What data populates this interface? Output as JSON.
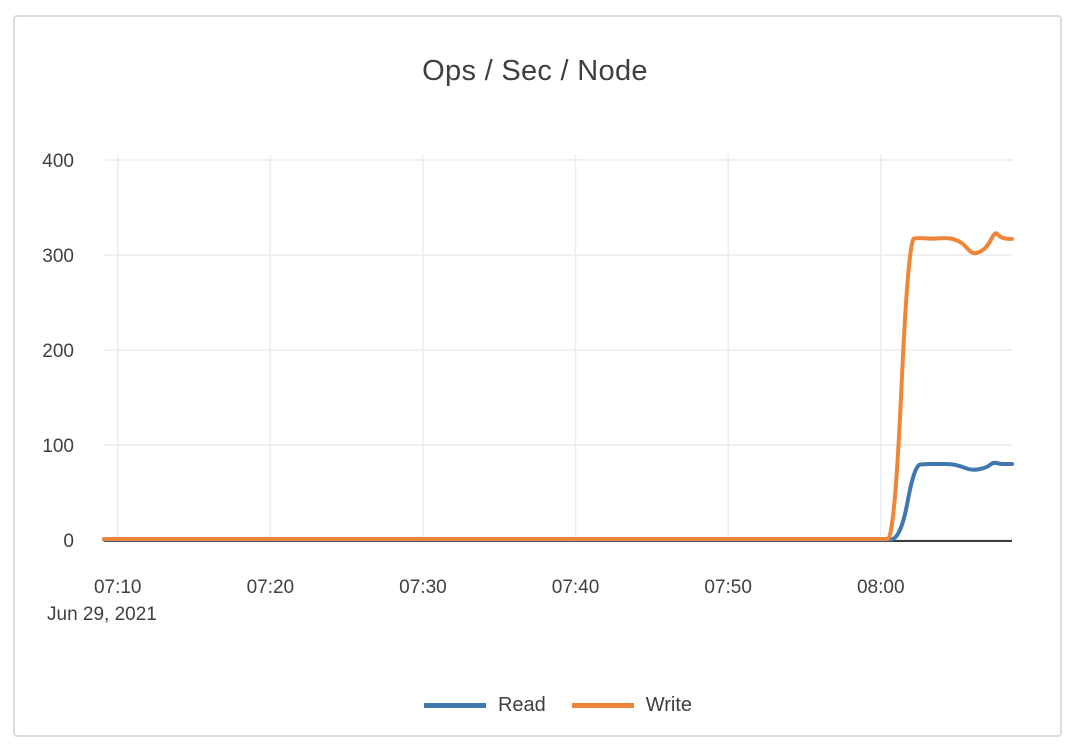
{
  "page": {
    "background": "#ffffff"
  },
  "card": {
    "border_color": "#dcdcdc",
    "background": "#ffffff"
  },
  "chart_data": {
    "type": "line",
    "title": "Ops / Sec / Node",
    "xlabel": "",
    "ylabel": "",
    "x_axis": {
      "date_label": "Jun 29, 2021",
      "tick_labels": [
        "07:10",
        "07:20",
        "07:30",
        "07:40",
        "07:50",
        "08:00"
      ],
      "tick_minutes_after_0700": [
        10,
        20,
        30,
        40,
        50,
        60
      ],
      "domain_minutes_after_0700": [
        9.1,
        68.6
      ]
    },
    "y_axis": {
      "tick_labels": [
        "0",
        "100",
        "200",
        "300",
        "400"
      ],
      "tick_values": [
        0,
        100,
        200,
        300,
        400
      ],
      "ylim": [
        0,
        400
      ]
    },
    "grid": true,
    "legend": {
      "position": "bottom",
      "entries": [
        "Read",
        "Write"
      ]
    },
    "series": [
      {
        "name": "Read",
        "color": "#3f77ae",
        "points": [
          [
            9.1,
            0.5
          ],
          [
            20,
            0.5
          ],
          [
            30,
            0.5
          ],
          [
            40,
            0.5
          ],
          [
            50,
            0.5
          ],
          [
            55,
            0.5
          ],
          [
            60,
            0.5
          ],
          [
            61.3,
            0.5
          ],
          [
            62.2,
            79
          ],
          [
            63,
            80
          ],
          [
            63.8,
            80
          ],
          [
            64.6,
            80
          ],
          [
            65.2,
            78
          ],
          [
            65.8,
            74
          ],
          [
            66.4,
            74
          ],
          [
            67,
            77
          ],
          [
            67.4,
            82
          ],
          [
            67.8,
            80
          ],
          [
            68.2,
            80
          ],
          [
            68.6,
            80
          ]
        ]
      },
      {
        "name": "Write",
        "color": "#ee8639",
        "points": [
          [
            9.1,
            1
          ],
          [
            20,
            1
          ],
          [
            30,
            1
          ],
          [
            40,
            1
          ],
          [
            50,
            1
          ],
          [
            55,
            1
          ],
          [
            60,
            1
          ],
          [
            60.9,
            1
          ],
          [
            61.8,
            317
          ],
          [
            62.6,
            318
          ],
          [
            63.4,
            317
          ],
          [
            64.2,
            318
          ],
          [
            64.8,
            317
          ],
          [
            65.4,
            312
          ],
          [
            66,
            301
          ],
          [
            66.5,
            303
          ],
          [
            67,
            309
          ],
          [
            67.5,
            325
          ],
          [
            67.8,
            319
          ],
          [
            68.2,
            317
          ],
          [
            68.6,
            317
          ]
        ]
      }
    ],
    "colors": {
      "grid": "#ececec",
      "axis": "#3b3b3b",
      "text": "#3f3f3f"
    }
  }
}
